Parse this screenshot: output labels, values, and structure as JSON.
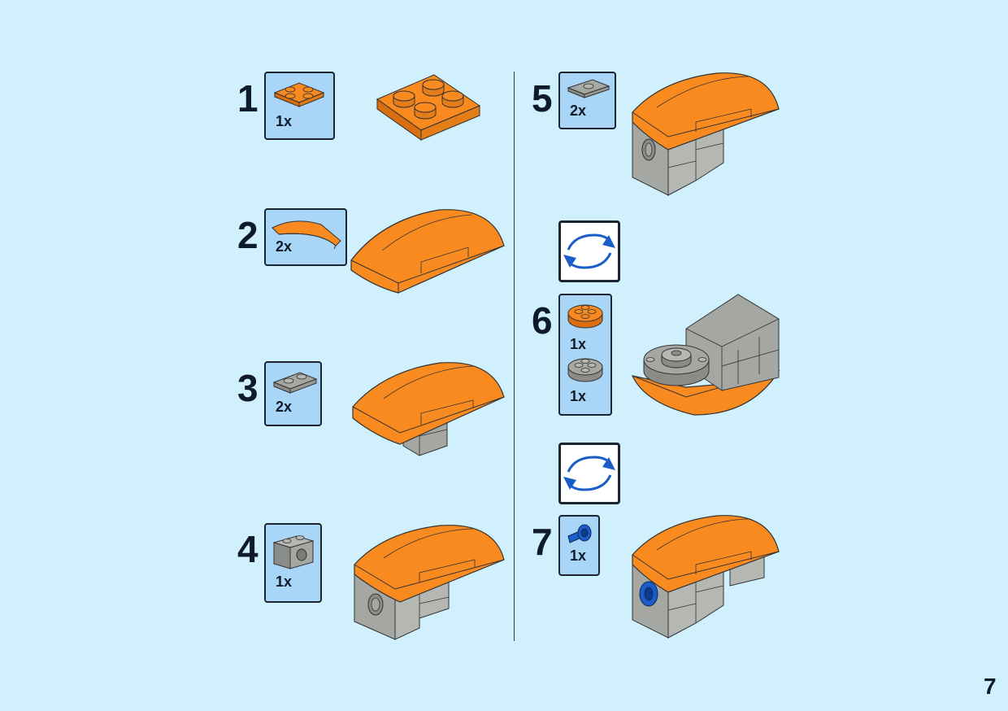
{
  "page_number": "7",
  "colors": {
    "background": "#d0f0fe",
    "callout": "#a9d6f7",
    "orange": "#f88a20",
    "gray": "#a5a7a2",
    "blue": "#1a5cc8"
  },
  "steps": [
    {
      "number": "1",
      "parts": [
        {
          "qty": "1x",
          "icon": "orange-plate-2x2-icon"
        }
      ]
    },
    {
      "number": "2",
      "parts": [
        {
          "qty": "2x",
          "icon": "orange-curved-slope-icon"
        }
      ]
    },
    {
      "number": "3",
      "parts": [
        {
          "qty": "2x",
          "icon": "gray-plate-1x2-icon"
        }
      ]
    },
    {
      "number": "4",
      "parts": [
        {
          "qty": "1x",
          "icon": "gray-technic-brick-icon"
        }
      ]
    },
    {
      "number": "5",
      "parts": [
        {
          "qty": "2x",
          "icon": "gray-jumper-plate-icon"
        }
      ]
    },
    {
      "number": "6",
      "parts": [
        {
          "qty": "1x",
          "icon": "orange-round-plate-icon"
        },
        {
          "qty": "1x",
          "icon": "gray-round-plate-icon"
        }
      ]
    },
    {
      "number": "7",
      "parts": [
        {
          "qty": "1x",
          "icon": "blue-pin-icon"
        }
      ]
    }
  ]
}
